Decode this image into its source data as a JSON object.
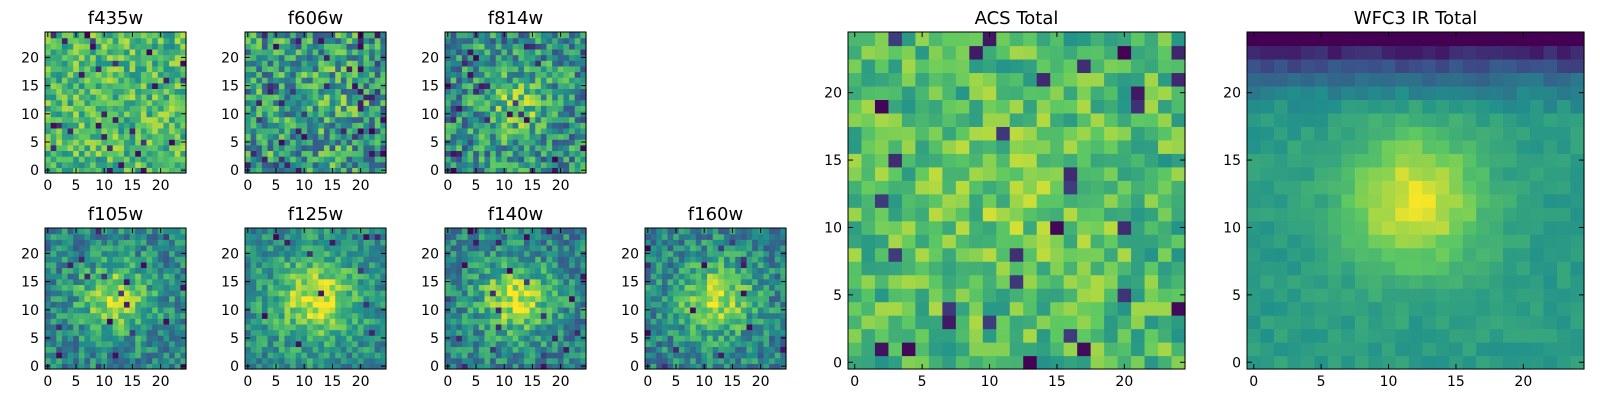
{
  "figure": {
    "colormap": "viridis",
    "colormap_stops": [
      "#440154",
      "#3b528b",
      "#21918c",
      "#5ec962",
      "#fde725"
    ]
  },
  "chart_data": [
    {
      "type": "heatmap",
      "title": "f435w",
      "grid": [
        25,
        25
      ],
      "xlim": [
        -0.5,
        24.5
      ],
      "ylim": [
        -0.5,
        24.5
      ],
      "xticks": [
        "0",
        "5",
        "10",
        "15",
        "20"
      ],
      "yticks": [
        "0",
        "5",
        "10",
        "15",
        "20"
      ],
      "pattern": {
        "base": 0.68,
        "peak": 0.0,
        "sigma": 4,
        "noise": 0.22,
        "dark_fraction": 0.04,
        "top_dark": 0,
        "seed": 11
      }
    },
    {
      "type": "heatmap",
      "title": "f606w",
      "grid": [
        25,
        25
      ],
      "xlim": [
        -0.5,
        24.5
      ],
      "ylim": [
        -0.5,
        24.5
      ],
      "xticks": [
        "0",
        "5",
        "10",
        "15",
        "20"
      ],
      "yticks": [
        "0",
        "5",
        "10",
        "15",
        "20"
      ],
      "pattern": {
        "base": 0.55,
        "peak": 0.1,
        "sigma": 4,
        "noise": 0.3,
        "dark_fraction": 0.07,
        "top_dark": 0,
        "seed": 23
      }
    },
    {
      "type": "heatmap",
      "title": "f814w",
      "grid": [
        25,
        25
      ],
      "xlim": [
        -0.5,
        24.5
      ],
      "ylim": [
        -0.5,
        24.5
      ],
      "xticks": [
        "0",
        "5",
        "10",
        "15",
        "20"
      ],
      "yticks": [
        "0",
        "5",
        "10",
        "15",
        "20"
      ],
      "pattern": {
        "base": 0.5,
        "peak": 0.25,
        "sigma": 4,
        "noise": 0.28,
        "dark_fraction": 0.05,
        "top_dark": 0,
        "seed": 37
      }
    },
    {
      "type": "heatmap",
      "title": "f105w",
      "grid": [
        25,
        25
      ],
      "xlim": [
        -0.5,
        24.5
      ],
      "ylim": [
        -0.5,
        24.5
      ],
      "xticks": [
        "0",
        "5",
        "10",
        "15",
        "20"
      ],
      "yticks": [
        "0",
        "5",
        "10",
        "15",
        "20"
      ],
      "pattern": {
        "base": 0.45,
        "peak": 0.4,
        "sigma": 4.5,
        "noise": 0.2,
        "dark_fraction": 0.03,
        "top_dark": 0,
        "seed": 41
      }
    },
    {
      "type": "heatmap",
      "title": "f125w",
      "grid": [
        25,
        25
      ],
      "xlim": [
        -0.5,
        24.5
      ],
      "ylim": [
        -0.5,
        24.5
      ],
      "xticks": [
        "0",
        "5",
        "10",
        "15",
        "20"
      ],
      "yticks": [
        "0",
        "5",
        "10",
        "15",
        "20"
      ],
      "pattern": {
        "base": 0.48,
        "peak": 0.45,
        "sigma": 5,
        "noise": 0.18,
        "dark_fraction": 0.02,
        "top_dark": 0,
        "seed": 53
      }
    },
    {
      "type": "heatmap",
      "title": "f140w",
      "grid": [
        25,
        25
      ],
      "xlim": [
        -0.5,
        24.5
      ],
      "ylim": [
        -0.5,
        24.5
      ],
      "xticks": [
        "0",
        "5",
        "10",
        "15",
        "20"
      ],
      "yticks": [
        "0",
        "5",
        "10",
        "15",
        "20"
      ],
      "pattern": {
        "base": 0.45,
        "peak": 0.45,
        "sigma": 4.5,
        "noise": 0.2,
        "dark_fraction": 0.03,
        "top_dark": 0,
        "seed": 67
      }
    },
    {
      "type": "heatmap",
      "title": "f160w",
      "grid": [
        25,
        25
      ],
      "xlim": [
        -0.5,
        24.5
      ],
      "ylim": [
        -0.5,
        24.5
      ],
      "xticks": [
        "0",
        "5",
        "10",
        "15",
        "20"
      ],
      "yticks": [
        "0",
        "5",
        "10",
        "15",
        "20"
      ],
      "pattern": {
        "base": 0.45,
        "peak": 0.45,
        "sigma": 4.5,
        "noise": 0.2,
        "dark_fraction": 0.03,
        "top_dark": 0,
        "seed": 79
      }
    },
    {
      "type": "heatmap",
      "title": "ACS Total",
      "grid": [
        25,
        25
      ],
      "xlim": [
        -0.5,
        24.5
      ],
      "ylim": [
        -0.5,
        24.5
      ],
      "xticks": [
        "0",
        "5",
        "10",
        "15",
        "20"
      ],
      "yticks": [
        "0",
        "5",
        "10",
        "15",
        "20"
      ],
      "pattern": {
        "base": 0.68,
        "peak": 0.1,
        "sigma": 5,
        "noise": 0.18,
        "dark_fraction": 0.05,
        "top_dark": 0,
        "seed": 97
      }
    },
    {
      "type": "heatmap",
      "title": "WFC3 IR Total",
      "grid": [
        25,
        25
      ],
      "xlim": [
        -0.5,
        24.5
      ],
      "ylim": [
        -0.5,
        24.5
      ],
      "xticks": [
        "0",
        "5",
        "10",
        "15",
        "20"
      ],
      "yticks": [
        "0",
        "5",
        "10",
        "15",
        "20"
      ],
      "pattern": {
        "base": 0.55,
        "peak": 0.42,
        "sigma": 3.5,
        "noise": 0.05,
        "dark_fraction": 0,
        "top_dark": 0.6,
        "seed": 101
      }
    }
  ]
}
